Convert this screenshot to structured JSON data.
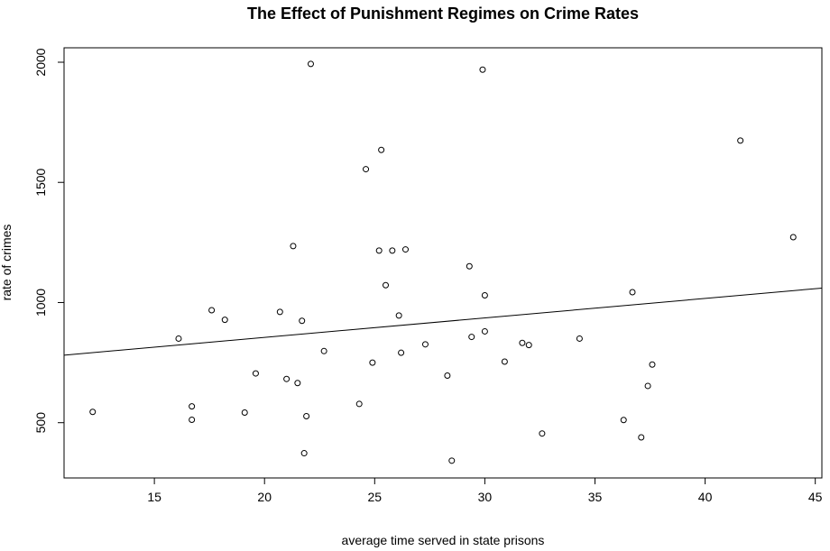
{
  "chart_data": {
    "type": "scatter",
    "title": "The Effect of Punishment Regimes on Crime Rates",
    "xlabel": "average time served in state prisons",
    "ylabel": "rate of crimes",
    "xlim": [
      10.9,
      45.3
    ],
    "ylim": [
      270,
      2060
    ],
    "xticks": [
      15,
      20,
      25,
      30,
      35,
      40,
      45
    ],
    "yticks": [
      500,
      1000,
      1500,
      2000
    ],
    "grid": false,
    "trendline": {
      "x": [
        10.9,
        45.3
      ],
      "y": [
        781,
        1060
      ]
    },
    "points": [
      [
        12.2,
        545
      ],
      [
        16.1,
        850
      ],
      [
        16.7,
        568
      ],
      [
        16.7,
        512
      ],
      [
        17.6,
        968
      ],
      [
        18.2,
        928
      ],
      [
        19.1,
        542
      ],
      [
        19.6,
        705
      ],
      [
        20.7,
        961
      ],
      [
        21.0,
        682
      ],
      [
        21.3,
        1235
      ],
      [
        21.5,
        665
      ],
      [
        21.7,
        924
      ],
      [
        21.8,
        373
      ],
      [
        21.9,
        527
      ],
      [
        22.1,
        1993
      ],
      [
        22.7,
        798
      ],
      [
        24.3,
        578
      ],
      [
        24.6,
        1555
      ],
      [
        24.9,
        750
      ],
      [
        25.2,
        1216
      ],
      [
        25.3,
        1635
      ],
      [
        25.5,
        1072
      ],
      [
        25.8,
        1216
      ],
      [
        26.1,
        946
      ],
      [
        26.2,
        791
      ],
      [
        26.4,
        1221
      ],
      [
        27.3,
        826
      ],
      [
        28.3,
        696
      ],
      [
        28.5,
        342
      ],
      [
        29.3,
        1151
      ],
      [
        29.4,
        857
      ],
      [
        29.9,
        1969
      ],
      [
        30.0,
        1030
      ],
      [
        30.0,
        880
      ],
      [
        30.9,
        754
      ],
      [
        31.7,
        832
      ],
      [
        32.0,
        823
      ],
      [
        32.6,
        455
      ],
      [
        34.3,
        850
      ],
      [
        36.3,
        511
      ],
      [
        36.7,
        1043
      ],
      [
        37.1,
        439
      ],
      [
        37.4,
        653
      ],
      [
        37.6,
        742
      ],
      [
        41.6,
        1674
      ],
      [
        44.0,
        1272
      ]
    ]
  }
}
